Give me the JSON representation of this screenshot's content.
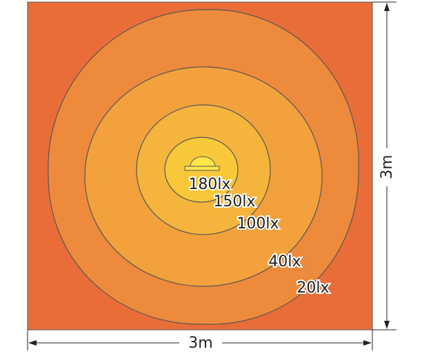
{
  "contours": [
    {
      "label": "180lx"
    },
    {
      "label": "150lx"
    },
    {
      "label": "100lx"
    },
    {
      "label": "40lx"
    },
    {
      "label": "20lx"
    }
  ],
  "width_label": "3m",
  "height_label": "3m"
}
